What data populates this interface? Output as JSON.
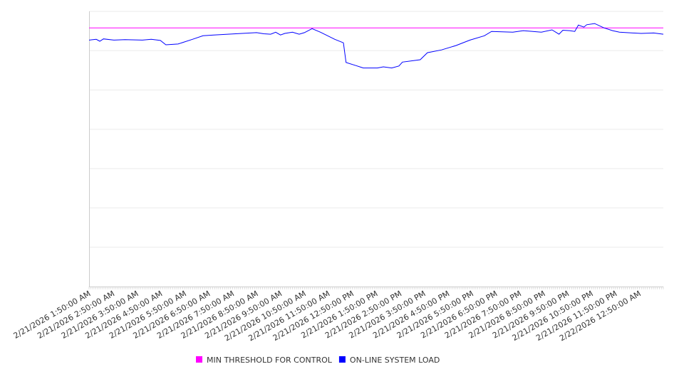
{
  "chart_data": {
    "type": "line",
    "title": "",
    "xlabel": "",
    "ylabel": "",
    "ylim": [
      0,
      7
    ],
    "grid": true,
    "y_tick_labels_visible": false,
    "x_tick_labels": [
      "2/21/2026 1:50:00 AM",
      "2/21/2026 2:50:00 AM",
      "2/21/2026 3:50:00 AM",
      "2/21/2026 4:50:00 AM",
      "2/21/2026 5:50:00 AM",
      "2/21/2026 6:50:00 AM",
      "2/21/2026 7:50:00 AM",
      "2/21/2026 8:50:00 AM",
      "2/21/2026 9:50:00 AM",
      "2/21/2026 10:50:00 AM",
      "2/21/2026 11:50:00 AM",
      "2/21/2026 12:50:00 PM",
      "2/21/2026 1:50:00 PM",
      "2/21/2026 2:50:00 PM",
      "2/21/2026 3:50:00 PM",
      "2/21/2026 4:50:00 PM",
      "2/21/2026 5:50:00 PM",
      "2/21/2026 6:50:00 PM",
      "2/21/2026 7:50:00 PM",
      "2/21/2026 8:50:00 PM",
      "2/21/2026 9:50:00 PM",
      "2/21/2026 10:50:00 PM",
      "2/21/2026 11:50:00 PM",
      "2/22/2026 12:50:00 AM"
    ],
    "x_unit": "hours since 2/21/2026 1:50:00 AM",
    "xlim": [
      0,
      24
    ],
    "legend_position": "bottom-center",
    "series": [
      {
        "name": "MIN THRESHOLD FOR CONTROL",
        "color": "#ff00ff",
        "points": [
          [
            0,
            6.58
          ],
          [
            24,
            6.58
          ]
        ]
      },
      {
        "name": "ON-LINE SYSTEM LOAD",
        "color": "#0000ff",
        "points": [
          [
            0,
            6.27
          ],
          [
            0.3,
            6.29
          ],
          [
            0.45,
            6.24
          ],
          [
            0.6,
            6.3
          ],
          [
            1.04,
            6.27
          ],
          [
            1.5,
            6.28
          ],
          [
            2.23,
            6.27
          ],
          [
            2.6,
            6.29
          ],
          [
            2.98,
            6.26
          ],
          [
            3.21,
            6.15
          ],
          [
            3.72,
            6.17
          ],
          [
            4.32,
            6.29
          ],
          [
            4.76,
            6.38
          ],
          [
            5.21,
            6.4
          ],
          [
            5.8,
            6.42
          ],
          [
            6.4,
            6.44
          ],
          [
            7.0,
            6.46
          ],
          [
            7.3,
            6.43
          ],
          [
            7.59,
            6.42
          ],
          [
            7.8,
            6.47
          ],
          [
            8.0,
            6.4
          ],
          [
            8.18,
            6.44
          ],
          [
            8.5,
            6.47
          ],
          [
            8.78,
            6.42
          ],
          [
            9.0,
            6.46
          ],
          [
            9.32,
            6.56
          ],
          [
            9.67,
            6.47
          ],
          [
            10.27,
            6.29
          ],
          [
            10.63,
            6.2
          ],
          [
            10.74,
            5.7
          ],
          [
            11.16,
            5.62
          ],
          [
            11.46,
            5.56
          ],
          [
            12.05,
            5.56
          ],
          [
            12.3,
            5.59
          ],
          [
            12.65,
            5.56
          ],
          [
            12.95,
            5.61
          ],
          [
            13.1,
            5.71
          ],
          [
            13.84,
            5.77
          ],
          [
            14.14,
            5.95
          ],
          [
            14.73,
            6.02
          ],
          [
            15.33,
            6.13
          ],
          [
            15.92,
            6.27
          ],
          [
            16.52,
            6.38
          ],
          [
            16.82,
            6.49
          ],
          [
            17.71,
            6.47
          ],
          [
            18.15,
            6.51
          ],
          [
            18.9,
            6.47
          ],
          [
            19.35,
            6.53
          ],
          [
            19.64,
            6.42
          ],
          [
            19.8,
            6.52
          ],
          [
            20.09,
            6.51
          ],
          [
            20.3,
            6.49
          ],
          [
            20.45,
            6.65
          ],
          [
            20.68,
            6.6
          ],
          [
            20.8,
            6.66
          ],
          [
            21.13,
            6.69
          ],
          [
            21.52,
            6.58
          ],
          [
            21.88,
            6.51
          ],
          [
            22.17,
            6.47
          ],
          [
            23.07,
            6.44
          ],
          [
            23.6,
            6.45
          ],
          [
            24,
            6.42
          ]
        ]
      }
    ]
  }
}
